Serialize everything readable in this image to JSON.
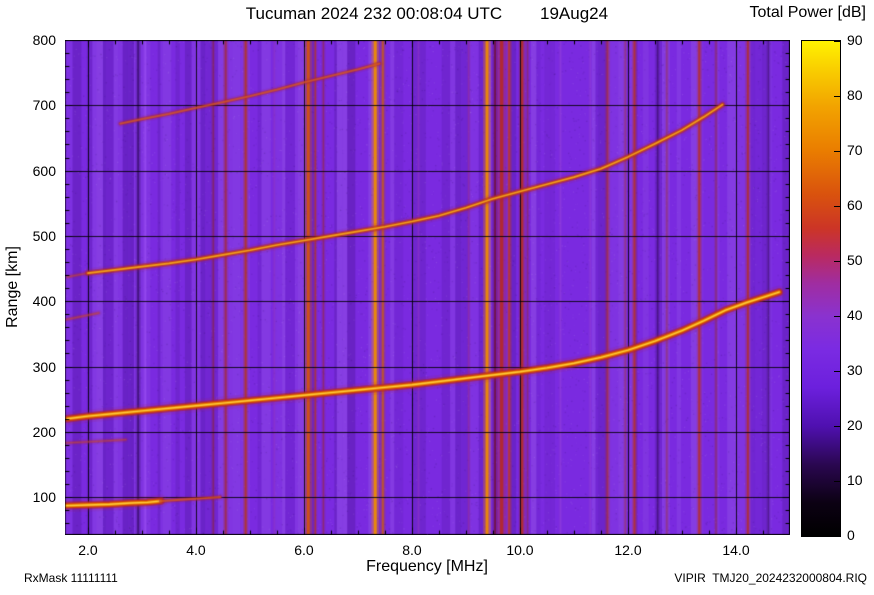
{
  "header": {
    "title": "Tucuman 2024 232 00:08:04 UTC",
    "date": "19Aug24"
  },
  "footer": {
    "rx_mask": "RxMask 11111111",
    "file": "VIPIR  TMJ20_2024232000804.RIQ"
  },
  "chart_data": {
    "type": "heatmap",
    "title": "Tucuman 2024 232 00:08:04 UTC 19Aug24",
    "xlabel": "Frequency [MHz]",
    "ylabel": "Range [km]",
    "xlim": [
      1.575,
      15.0
    ],
    "ylim": [
      42,
      800
    ],
    "grid": true,
    "x_minor_step": 0.5,
    "y_minor_step": 20,
    "xticks": [
      {
        "v": 2,
        "label": "2.0"
      },
      {
        "v": 4,
        "label": "4.0"
      },
      {
        "v": 6,
        "label": "6.0"
      },
      {
        "v": 8,
        "label": "8.0"
      },
      {
        "v": 10,
        "label": "10.0"
      },
      {
        "v": 12,
        "label": "12.0"
      },
      {
        "v": 14,
        "label": "14.0"
      }
    ],
    "yticks": [
      100,
      200,
      300,
      400,
      500,
      600,
      700,
      800
    ],
    "colorbar": {
      "label": "Total Power [dB]",
      "min": 0,
      "max": 90,
      "ticks": [
        0,
        10,
        20,
        30,
        40,
        50,
        60,
        70,
        80,
        90
      ],
      "stops": [
        {
          "v": 0,
          "c": "#000000"
        },
        {
          "v": 6,
          "c": "#0c0113"
        },
        {
          "v": 13,
          "c": "#2a0750"
        },
        {
          "v": 20,
          "c": "#4f10b0"
        },
        {
          "v": 27,
          "c": "#6c20dd"
        },
        {
          "v": 34,
          "c": "#7b2be2"
        },
        {
          "v": 40,
          "c": "#8a32cf"
        },
        {
          "v": 46,
          "c": "#a02da0"
        },
        {
          "v": 51,
          "c": "#ba2a60"
        },
        {
          "v": 56,
          "c": "#cc3526"
        },
        {
          "v": 62,
          "c": "#d9520e"
        },
        {
          "v": 70,
          "c": "#ea7d00"
        },
        {
          "v": 78,
          "c": "#f2a300"
        },
        {
          "v": 85,
          "c": "#f9cf00"
        },
        {
          "v": 90,
          "c": "#fff200"
        }
      ]
    },
    "background_color": "#7a2ae0",
    "background_noise_db": 25,
    "traces": [
      {
        "name": "E-region echo",
        "intensity": "strong",
        "points": [
          [
            1.6,
            87
          ],
          [
            2.0,
            88
          ],
          [
            2.4,
            89
          ],
          [
            2.8,
            91
          ],
          [
            3.1,
            92
          ],
          [
            3.35,
            94
          ]
        ]
      },
      {
        "name": "E-region echo tail",
        "intensity": "faint",
        "points": [
          [
            3.35,
            94
          ],
          [
            3.7,
            96
          ],
          [
            4.1,
            98
          ],
          [
            4.45,
            100
          ]
        ]
      },
      {
        "name": "E-region double reflection",
        "intensity": "veryfaint",
        "points": [
          [
            1.6,
            183
          ],
          [
            2.1,
            185
          ],
          [
            2.7,
            188
          ]
        ]
      },
      {
        "name": "F low-frequency faint echo",
        "intensity": "veryfaint",
        "points": [
          [
            1.6,
            372
          ],
          [
            1.9,
            377
          ],
          [
            2.2,
            382
          ]
        ]
      },
      {
        "name": "F-region first-hop trace",
        "intensity": "strong",
        "points": [
          [
            1.62,
            220
          ],
          [
            2,
            224
          ],
          [
            2.5,
            228
          ],
          [
            3,
            232
          ],
          [
            3.5,
            236
          ],
          [
            4,
            240
          ],
          [
            4.5,
            244
          ],
          [
            5,
            248
          ],
          [
            5.5,
            252
          ],
          [
            6,
            256
          ],
          [
            6.5,
            260
          ],
          [
            7,
            264
          ],
          [
            7.5,
            268
          ],
          [
            8,
            272
          ],
          [
            8.5,
            277
          ],
          [
            9,
            282
          ],
          [
            9.5,
            287
          ],
          [
            10,
            292
          ],
          [
            10.5,
            298
          ],
          [
            11,
            305
          ],
          [
            11.5,
            314
          ],
          [
            12,
            325
          ],
          [
            12.5,
            339
          ],
          [
            13,
            355
          ],
          [
            13.4,
            370
          ],
          [
            13.8,
            386
          ],
          [
            14.2,
            398
          ],
          [
            14.5,
            406
          ],
          [
            14.8,
            414
          ]
        ]
      },
      {
        "name": "F-region second-hop faint start",
        "intensity": "veryfaint",
        "points": [
          [
            1.62,
            437
          ],
          [
            1.8,
            440
          ],
          [
            2.0,
            443
          ]
        ]
      },
      {
        "name": "F-region second-hop trace",
        "intensity": "medium",
        "points": [
          [
            2.0,
            443
          ],
          [
            2.5,
            448
          ],
          [
            3.0,
            453
          ],
          [
            3.5,
            458
          ],
          [
            4.0,
            464
          ],
          [
            4.5,
            471
          ],
          [
            5.0,
            478
          ],
          [
            5.5,
            486
          ],
          [
            6.0,
            493
          ],
          [
            6.5,
            500
          ],
          [
            7.0,
            507
          ],
          [
            7.5,
            514
          ],
          [
            8.0,
            522
          ],
          [
            8.5,
            531
          ],
          [
            9.0,
            543
          ],
          [
            9.5,
            557
          ],
          [
            10.0,
            568
          ],
          [
            10.5,
            579
          ],
          [
            11.0,
            590
          ],
          [
            11.5,
            603
          ],
          [
            12.0,
            621
          ],
          [
            12.5,
            641
          ],
          [
            13.0,
            662
          ],
          [
            13.4,
            682
          ],
          [
            13.75,
            701
          ]
        ]
      },
      {
        "name": "F-region third-hop trace",
        "intensity": "faint",
        "points": [
          [
            2.6,
            672
          ],
          [
            3.0,
            679
          ],
          [
            3.5,
            687
          ],
          [
            4.0,
            696
          ],
          [
            4.5,
            705
          ],
          [
            5.0,
            714
          ],
          [
            5.5,
            724
          ],
          [
            6.0,
            735
          ],
          [
            6.5,
            745
          ],
          [
            7.0,
            755
          ],
          [
            7.4,
            764
          ]
        ]
      }
    ],
    "rfi_lines": [
      {
        "f": 2.93,
        "w": 2,
        "color": "#2c0758",
        "alpha": 0.6
      },
      {
        "f": 3.06,
        "w": 1.5,
        "color": "#9a4df2",
        "alpha": 0.7
      },
      {
        "f": 4.32,
        "w": 1.5,
        "color": "#8c2430",
        "alpha": 0.5
      },
      {
        "f": 4.55,
        "w": 2,
        "color": "#a62a2a",
        "alpha": 0.65
      },
      {
        "f": 4.92,
        "w": 2,
        "color": "#b5341e",
        "alpha": 0.8
      },
      {
        "f": 5.45,
        "w": 1.5,
        "color": "#8f35c5",
        "alpha": 0.5
      },
      {
        "f": 6.08,
        "w": 3,
        "color": "#d4540a",
        "alpha": 0.9
      },
      {
        "f": 6.21,
        "w": 1.5,
        "color": "#b03422",
        "alpha": 0.7
      },
      {
        "f": 6.36,
        "w": 1.5,
        "color": "#93283f",
        "alpha": 0.55
      },
      {
        "f": 7.32,
        "w": 3,
        "color": "#ec8a06",
        "alpha": 0.95
      },
      {
        "f": 7.46,
        "w": 2,
        "color": "#cc5d10",
        "alpha": 0.75
      },
      {
        "f": 8.12,
        "w": 1.5,
        "color": "#8f35c5",
        "alpha": 0.55
      },
      {
        "f": 9.05,
        "w": 1.5,
        "color": "#97309a",
        "alpha": 0.5
      },
      {
        "f": 9.39,
        "w": 3,
        "color": "#ec8a06",
        "alpha": 0.95
      },
      {
        "f": 9.54,
        "w": 2,
        "color": "#6f0f2e",
        "alpha": 0.75
      },
      {
        "f": 9.66,
        "w": 3.5,
        "color": "#b52828",
        "alpha": 0.9
      },
      {
        "f": 9.8,
        "w": 2,
        "color": "#c23a20",
        "alpha": 0.8
      },
      {
        "f": 10.04,
        "w": 2.5,
        "color": "#b52e20",
        "alpha": 0.85
      },
      {
        "f": 10.14,
        "w": 1.5,
        "color": "#8f2a50",
        "alpha": 0.55
      },
      {
        "f": 10.75,
        "w": 1.5,
        "color": "#9440d8",
        "alpha": 0.55
      },
      {
        "f": 11.3,
        "w": 1.5,
        "color": "#9440d8",
        "alpha": 0.5
      },
      {
        "f": 11.62,
        "w": 2,
        "color": "#a62e33",
        "alpha": 0.65
      },
      {
        "f": 11.95,
        "w": 1.5,
        "color": "#9a3458",
        "alpha": 0.5
      },
      {
        "f": 12.12,
        "w": 2,
        "color": "#b53026",
        "alpha": 0.8
      },
      {
        "f": 12.55,
        "w": 1.5,
        "color": "#360b62",
        "alpha": 0.55
      },
      {
        "f": 12.72,
        "w": 1.5,
        "color": "#9a3446",
        "alpha": 0.45
      },
      {
        "f": 13.32,
        "w": 2,
        "color": "#b53026",
        "alpha": 0.8
      },
      {
        "f": 13.63,
        "w": 1.5,
        "color": "#933046",
        "alpha": 0.5
      },
      {
        "f": 14.22,
        "w": 2,
        "color": "#b02f2a",
        "alpha": 0.8
      },
      {
        "f": 14.6,
        "w": 1.5,
        "color": "#360b62",
        "alpha": 0.5
      }
    ]
  }
}
